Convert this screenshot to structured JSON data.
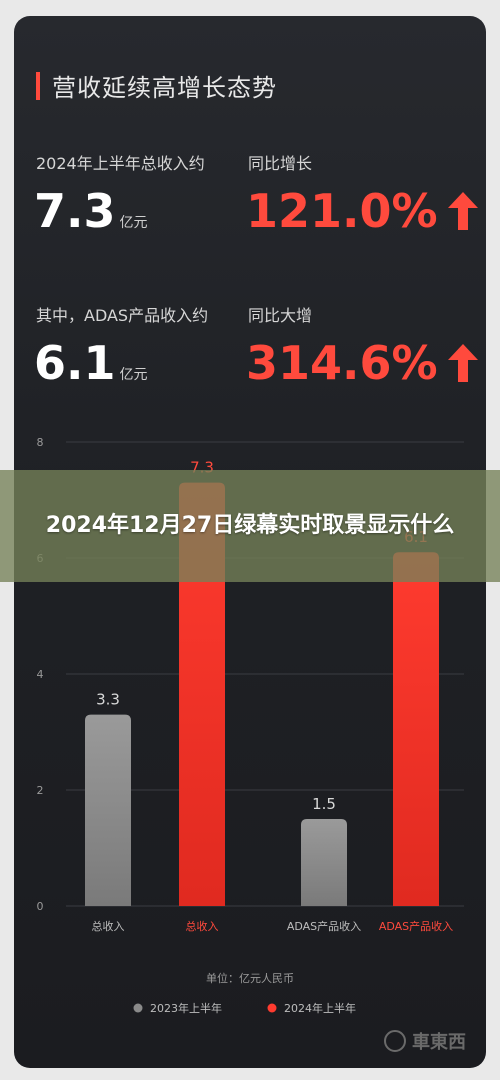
{
  "header": {
    "title": "营收延续高增长态势"
  },
  "stats": {
    "row1": {
      "left_label": "2024年上半年总收入约",
      "left_value": "7.3",
      "left_unit": "亿元",
      "right_label": "同比增长",
      "right_value": "121.0%"
    },
    "row2": {
      "left_label": "其中，ADAS产品收入约",
      "left_value": "6.1",
      "left_unit": "亿元",
      "right_label": "同比大增",
      "right_value": "314.6%"
    }
  },
  "overlay": {
    "text": "2024年12月27日绿幕实时取景显示什么"
  },
  "watermark": {
    "text": "車東西"
  },
  "colors": {
    "accent_red": "#ff4a3d",
    "gray_bar": "#8a8a8a",
    "red_bar": "#ff3b2f"
  },
  "chart_data": {
    "type": "bar",
    "categories": [
      "总收入",
      "总收入",
      "ADAS产品收入",
      "ADAS产品收入"
    ],
    "series": [
      {
        "name": "2023年上半年",
        "values": [
          3.3,
          null,
          1.5,
          null
        ],
        "color": "#8a8a8a"
      },
      {
        "name": "2024年上半年",
        "values": [
          null,
          7.3,
          null,
          6.1
        ],
        "color": "#ff3b2f"
      }
    ],
    "bars": [
      {
        "category": "总收入",
        "series": "2023年上半年",
        "value": 3.3,
        "label": "3.3"
      },
      {
        "category": "总收入",
        "series": "2024年上半年",
        "value": 7.3,
        "label": "7.3"
      },
      {
        "category": "ADAS产品收入",
        "series": "2023年上半年",
        "value": 1.5,
        "label": "1.5"
      },
      {
        "category": "ADAS产品收入",
        "series": "2024年上半年",
        "value": 6.1,
        "label": "6.1"
      }
    ],
    "yticks": [
      "0",
      "2",
      "4",
      "6",
      "8"
    ],
    "ylim": [
      0,
      8
    ],
    "unit_note": "单位：亿元人民币",
    "legend": [
      "2023年上半年",
      "2024年上半年"
    ],
    "legend_position": "bottom",
    "grid": true
  }
}
